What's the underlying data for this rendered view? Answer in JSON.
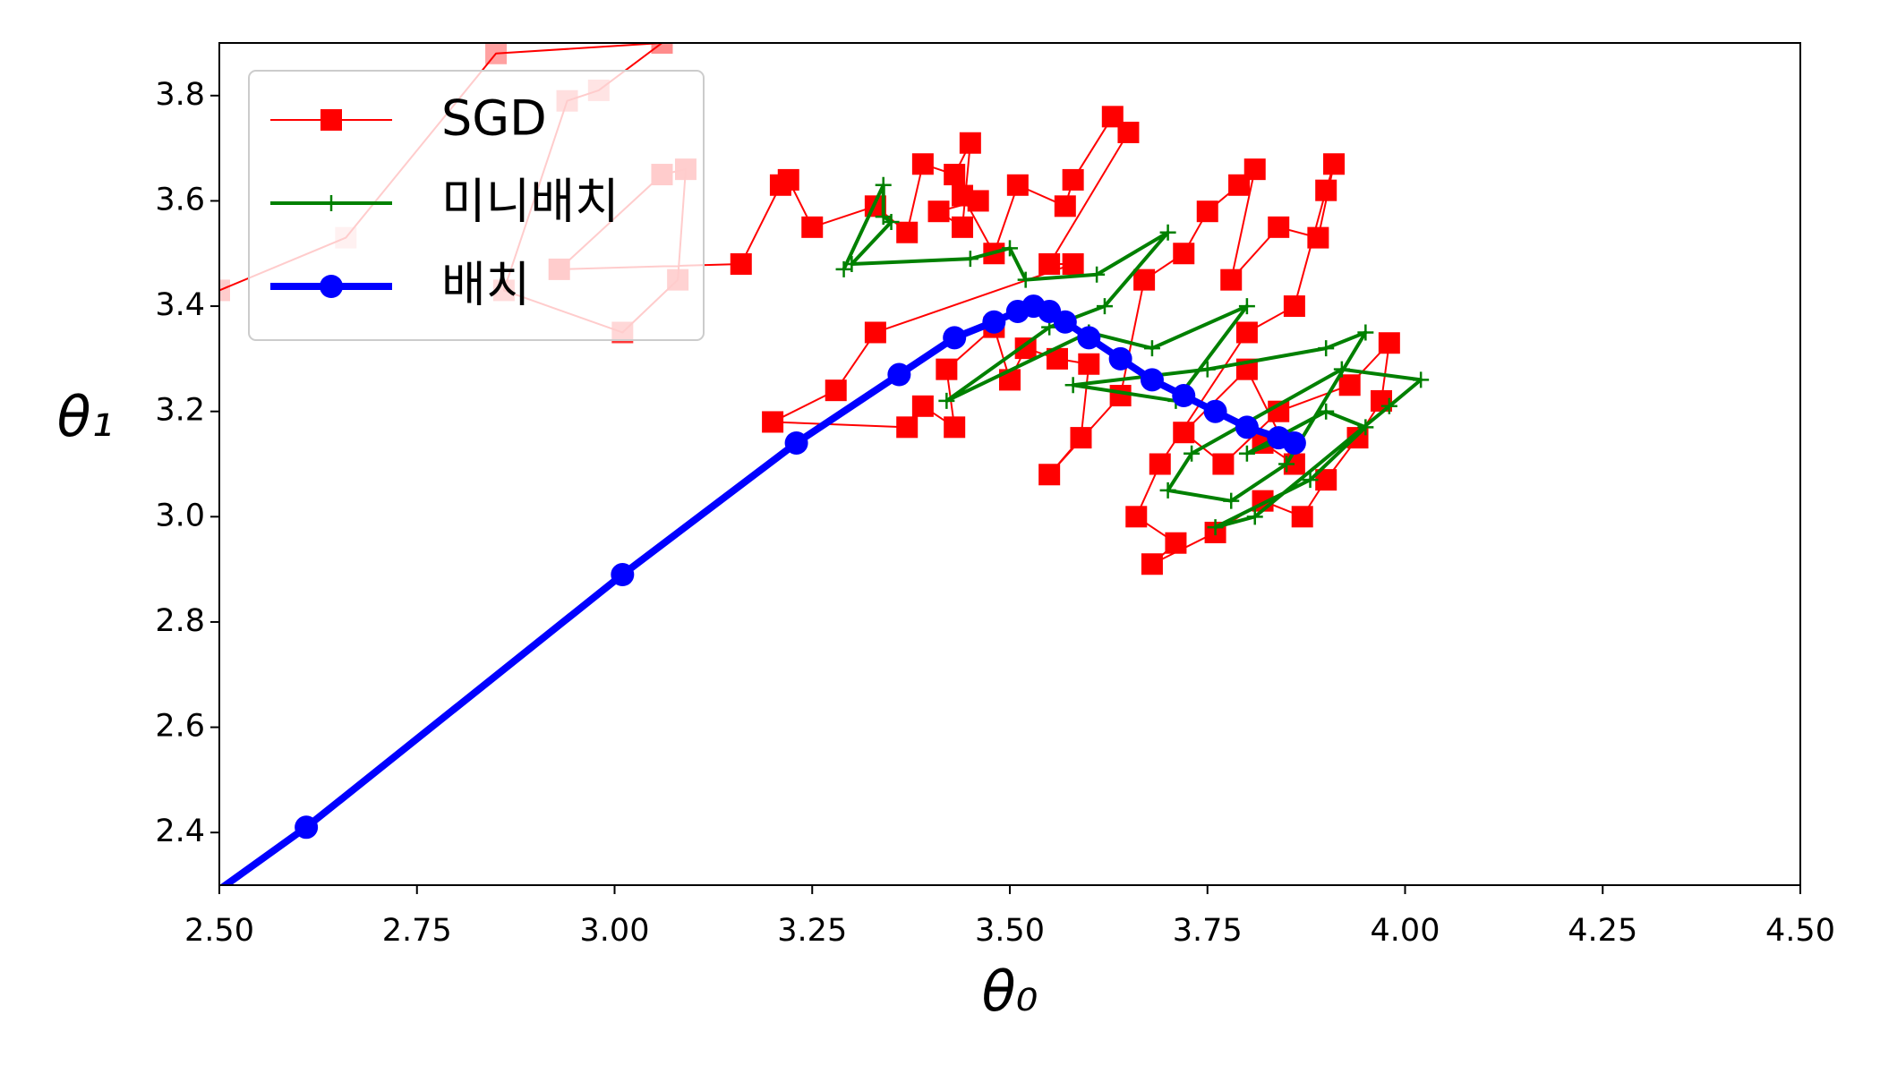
{
  "chart_data": {
    "type": "line",
    "xlabel": "θ₀",
    "ylabel": "θ₁",
    "xlim": [
      2.5,
      4.5
    ],
    "ylim": [
      2.3,
      3.9
    ],
    "xticks": [
      {
        "value": 2.5,
        "label": "2.50"
      },
      {
        "value": 2.75,
        "label": "2.75"
      },
      {
        "value": 3.0,
        "label": "3.00"
      },
      {
        "value": 3.25,
        "label": "3.25"
      },
      {
        "value": 3.5,
        "label": "3.50"
      },
      {
        "value": 3.75,
        "label": "3.75"
      },
      {
        "value": 4.0,
        "label": "4.00"
      },
      {
        "value": 4.25,
        "label": "4.25"
      },
      {
        "value": 4.5,
        "label": "4.50"
      }
    ],
    "yticks": [
      {
        "value": 2.4,
        "label": "2.4"
      },
      {
        "value": 2.6,
        "label": "2.6"
      },
      {
        "value": 2.8,
        "label": "2.8"
      },
      {
        "value": 3.0,
        "label": "3.0"
      },
      {
        "value": 3.2,
        "label": "3.2"
      },
      {
        "value": 3.4,
        "label": "3.4"
      },
      {
        "value": 3.6,
        "label": "3.6"
      },
      {
        "value": 3.8,
        "label": "3.8"
      }
    ],
    "legend": "upper left",
    "series": [
      {
        "name": "SGD",
        "color": "#ff0000",
        "marker": "square",
        "x": [
          2.5,
          2.66,
          2.85,
          3.06,
          2.98,
          2.94,
          2.86,
          3.01,
          3.08,
          3.09,
          3.06,
          2.93,
          3.16,
          3.21,
          3.22,
          3.25,
          3.33,
          3.37,
          3.39,
          3.43,
          3.45,
          3.44,
          3.41,
          3.46,
          3.44,
          3.48,
          3.51,
          3.57,
          3.58,
          3.63,
          3.65,
          3.55,
          3.58,
          3.33,
          3.28,
          3.2,
          3.37,
          3.39,
          3.43,
          3.42,
          3.48,
          3.5,
          3.52,
          3.56,
          3.6,
          3.59,
          3.55,
          3.64,
          3.67,
          3.72,
          3.75,
          3.79,
          3.81,
          3.78,
          3.84,
          3.89,
          3.91,
          3.9,
          3.86,
          3.8,
          3.69,
          3.66,
          3.71,
          3.68,
          3.76,
          3.82,
          3.87,
          3.9,
          3.94,
          3.97,
          3.98,
          3.93,
          3.84,
          3.77,
          3.72,
          3.8,
          3.86,
          3.82
        ],
        "values": [
          3.43,
          3.53,
          3.88,
          3.9,
          3.81,
          3.79,
          3.43,
          3.35,
          3.45,
          3.66,
          3.65,
          3.47,
          3.48,
          3.63,
          3.64,
          3.55,
          3.59,
          3.54,
          3.67,
          3.65,
          3.71,
          3.55,
          3.58,
          3.6,
          3.61,
          3.5,
          3.63,
          3.59,
          3.64,
          3.76,
          3.73,
          3.48,
          3.48,
          3.35,
          3.24,
          3.18,
          3.17,
          3.21,
          3.17,
          3.28,
          3.36,
          3.26,
          3.32,
          3.3,
          3.29,
          3.15,
          3.08,
          3.23,
          3.45,
          3.5,
          3.58,
          3.63,
          3.66,
          3.45,
          3.55,
          3.53,
          3.67,
          3.62,
          3.4,
          3.35,
          3.1,
          3.0,
          2.95,
          2.91,
          2.97,
          3.03,
          3.0,
          3.07,
          3.15,
          3.22,
          3.33,
          3.25,
          3.2,
          3.1,
          3.16,
          3.28,
          3.1,
          3.14
        ]
      },
      {
        "name": "미니배치",
        "color": "#008000",
        "marker": "plus",
        "x": [
          3.29,
          3.34,
          3.34,
          3.35,
          3.3,
          3.45,
          3.5,
          3.52,
          3.61,
          3.7,
          3.62,
          3.55,
          3.42,
          3.6,
          3.68,
          3.8,
          3.71,
          3.58,
          3.75,
          3.9,
          3.95,
          3.85,
          3.78,
          3.7,
          3.73,
          3.92,
          4.02,
          3.98,
          3.81,
          3.76,
          3.88,
          3.95,
          3.9,
          3.8,
          3.85
        ],
        "values": [
          3.47,
          3.63,
          3.57,
          3.56,
          3.48,
          3.49,
          3.51,
          3.45,
          3.46,
          3.54,
          3.4,
          3.36,
          3.22,
          3.35,
          3.32,
          3.4,
          3.22,
          3.25,
          3.28,
          3.32,
          3.35,
          3.1,
          3.03,
          3.05,
          3.12,
          3.28,
          3.26,
          3.21,
          3.0,
          2.98,
          3.07,
          3.17,
          3.2,
          3.12,
          3.15
        ]
      },
      {
        "name": "배치",
        "color": "#0000ff",
        "marker": "circle",
        "x": [
          2.48,
          2.61,
          3.01,
          3.23,
          3.36,
          3.43,
          3.48,
          3.51,
          3.53,
          3.55,
          3.57,
          3.6,
          3.64,
          3.68,
          3.72,
          3.76,
          3.8,
          3.84,
          3.86
        ],
        "values": [
          2.27,
          2.41,
          2.89,
          3.14,
          3.27,
          3.34,
          3.37,
          3.39,
          3.4,
          3.39,
          3.37,
          3.34,
          3.3,
          3.26,
          3.23,
          3.2,
          3.17,
          3.15,
          3.14
        ]
      }
    ]
  }
}
